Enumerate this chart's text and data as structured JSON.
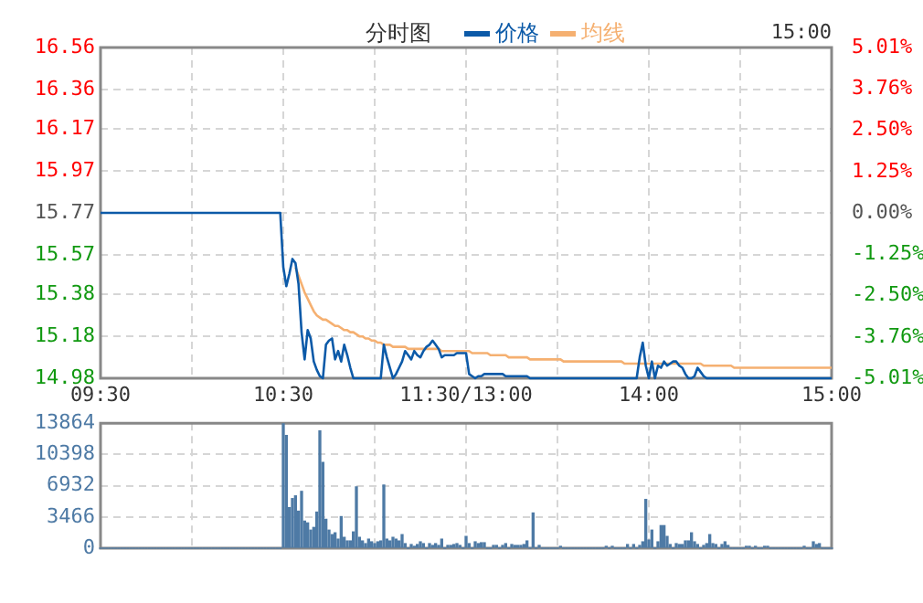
{
  "chart_data": [
    {
      "type": "line",
      "title": "分时图",
      "legend": "top",
      "marker": "none",
      "grid": true,
      "annotations": [
        "15:00"
      ],
      "categories": [
        "09:30",
        null,
        null,
        null,
        null,
        null,
        null,
        null,
        null,
        null,
        null,
        null,
        null,
        null,
        null,
        null,
        null,
        null,
        null,
        null,
        null,
        null,
        null,
        null,
        null,
        null,
        null,
        null,
        null,
        null,
        null,
        null,
        null,
        null,
        null,
        null,
        null,
        null,
        null,
        null,
        null,
        null,
        null,
        null,
        null,
        null,
        null,
        null,
        null,
        null,
        null,
        null,
        null,
        null,
        null,
        null,
        null,
        null,
        null,
        null,
        "10:30",
        null,
        null,
        null,
        null,
        null,
        null,
        null,
        null,
        null,
        null,
        null,
        null,
        null,
        null,
        null,
        null,
        null,
        null,
        null,
        null,
        null,
        null,
        null,
        null,
        null,
        null,
        null,
        null,
        null,
        null,
        null,
        null,
        null,
        null,
        null,
        null,
        null,
        null,
        null,
        null,
        null,
        null,
        null,
        null,
        null,
        null,
        null,
        null,
        null,
        null,
        null,
        null,
        null,
        null,
        null,
        null,
        null,
        null,
        null,
        "11:30/13:00",
        null,
        null,
        null,
        null,
        null,
        null,
        null,
        null,
        null,
        null,
        null,
        null,
        null,
        null,
        null,
        null,
        null,
        null,
        null,
        null,
        null,
        null,
        null,
        null,
        null,
        null,
        null,
        null,
        null,
        null,
        null,
        null,
        null,
        null,
        null,
        null,
        null,
        null,
        null,
        null,
        null,
        null,
        null,
        null,
        null,
        null,
        null,
        null,
        null,
        null,
        null,
        null,
        null,
        null,
        null,
        null,
        null,
        null,
        null,
        "14:00",
        null,
        null,
        null,
        null,
        null,
        null,
        null,
        null,
        null,
        null,
        null,
        null,
        null,
        null,
        null,
        null,
        null,
        null,
        null,
        null,
        null,
        null,
        null,
        null,
        null,
        null,
        null,
        null,
        null,
        null,
        null,
        null,
        null,
        null,
        null,
        null,
        null,
        null,
        null,
        null,
        null,
        null,
        null,
        null,
        null,
        null,
        null,
        null,
        null,
        null,
        null,
        null,
        null,
        null,
        null,
        null,
        null,
        null,
        null,
        "15:00"
      ],
      "ylim": [
        14.98,
        16.56
      ],
      "yticks": [
        14.98,
        15.18,
        15.38,
        15.57,
        15.77,
        15.97,
        16.17,
        16.36,
        16.56
      ],
      "y2lim": [
        -5.01,
        5.01
      ],
      "y2ticks": [
        {
          "value": -5.01,
          "label": "-5.01%"
        },
        {
          "value": -3.76,
          "label": "-3.76%"
        },
        {
          "value": -2.5,
          "label": "-2.50%"
        },
        {
          "value": -1.25,
          "label": "-1.25%"
        },
        {
          "value": 0,
          "label": "0.00%"
        },
        {
          "value": 1.25,
          "label": "1.25%"
        },
        {
          "value": 2.5,
          "label": "2.50%"
        },
        {
          "value": 3.76,
          "label": "3.76%"
        },
        {
          "value": 5.01,
          "label": "5.01%"
        }
      ],
      "series": [
        {
          "name": "价格",
          "color": "#0c5aa8",
          "values": [
            15.77,
            15.77,
            15.77,
            15.77,
            15.77,
            15.77,
            15.77,
            15.77,
            15.77,
            15.77,
            15.77,
            15.77,
            15.77,
            15.77,
            15.77,
            15.77,
            15.77,
            15.77,
            15.77,
            15.77,
            15.77,
            15.77,
            15.77,
            15.77,
            15.77,
            15.77,
            15.77,
            15.77,
            15.77,
            15.77,
            15.77,
            15.77,
            15.77,
            15.77,
            15.77,
            15.77,
            15.77,
            15.77,
            15.77,
            15.77,
            15.77,
            15.77,
            15.77,
            15.77,
            15.77,
            15.77,
            15.77,
            15.77,
            15.77,
            15.77,
            15.77,
            15.77,
            15.77,
            15.77,
            15.77,
            15.77,
            15.77,
            15.77,
            15.77,
            15.77,
            15.51,
            15.42,
            15.48,
            15.55,
            15.53,
            15.43,
            15.2,
            15.07,
            15.21,
            15.17,
            15.06,
            15.02,
            14.99,
            14.98,
            15.14,
            15.16,
            15.17,
            15.07,
            15.11,
            15.06,
            15.14,
            15.09,
            15.03,
            14.98,
            14.98,
            14.98,
            14.98,
            14.98,
            14.98,
            14.98,
            14.98,
            14.98,
            14.98,
            15.14,
            15.08,
            15.03,
            14.98,
            15.0,
            15.03,
            15.06,
            15.11,
            15.09,
            15.07,
            15.11,
            15.09,
            15.08,
            15.11,
            15.13,
            15.14,
            15.16,
            15.14,
            15.12,
            15.08,
            15.09,
            15.09,
            15.09,
            15.09,
            15.1,
            15.1,
            15.1,
            15.1,
            15.0,
            14.99,
            14.98,
            14.99,
            14.99,
            15.0,
            15.0,
            15.0,
            15.0,
            15.0,
            15.0,
            15.0,
            14.99,
            14.99,
            14.99,
            14.99,
            14.99,
            14.99,
            14.99,
            14.99,
            14.98,
            14.98,
            14.98,
            14.98,
            14.98,
            14.98,
            14.98,
            14.98,
            14.98,
            14.98,
            14.98,
            14.98,
            14.98,
            14.98,
            14.98,
            14.98,
            14.98,
            14.98,
            14.98,
            14.98,
            14.98,
            14.98,
            14.98,
            14.98,
            14.98,
            14.98,
            14.98,
            14.98,
            14.98,
            14.98,
            14.98,
            14.98,
            14.98,
            14.98,
            14.98,
            14.98,
            15.08,
            15.15,
            15.04,
            14.98,
            15.06,
            14.98,
            15.04,
            15.03,
            15.06,
            15.04,
            15.05,
            15.06,
            15.06,
            15.04,
            15.03,
            15.0,
            14.98,
            14.98,
            14.99,
            15.03,
            15.01,
            14.99,
            14.98,
            14.98,
            14.98,
            14.98,
            14.98,
            14.98,
            14.98,
            14.98,
            14.98,
            14.98,
            14.98,
            14.98,
            14.98,
            14.98,
            14.98,
            14.98,
            14.98,
            14.98,
            14.98,
            14.98,
            14.98,
            14.98,
            14.98,
            14.98,
            14.98,
            14.98,
            14.98,
            14.98,
            14.98,
            14.98,
            14.98,
            14.98,
            14.98,
            14.98,
            14.98,
            14.98,
            14.98,
            14.98,
            14.98,
            14.98,
            14.98,
            14.98
          ]
        },
        {
          "name": "均线",
          "color": "#f5b071",
          "values": [
            null,
            null,
            null,
            null,
            null,
            null,
            null,
            null,
            null,
            null,
            null,
            null,
            null,
            null,
            null,
            null,
            null,
            null,
            null,
            null,
            null,
            null,
            null,
            null,
            null,
            null,
            null,
            null,
            null,
            null,
            null,
            null,
            null,
            null,
            null,
            null,
            null,
            null,
            null,
            null,
            null,
            null,
            null,
            null,
            null,
            null,
            null,
            null,
            null,
            null,
            null,
            null,
            null,
            null,
            null,
            null,
            null,
            null,
            null,
            null,
            null,
            null,
            null,
            null,
            15.51,
            15.47,
            15.43,
            15.39,
            15.36,
            15.33,
            15.3,
            15.28,
            15.27,
            15.26,
            15.26,
            15.25,
            15.24,
            15.23,
            15.23,
            15.22,
            15.21,
            15.21,
            15.2,
            15.2,
            15.19,
            15.18,
            15.18,
            15.17,
            15.17,
            15.16,
            15.16,
            15.15,
            15.15,
            15.14,
            15.14,
            15.14,
            15.13,
            15.13,
            15.13,
            15.13,
            15.13,
            15.12,
            15.12,
            15.12,
            15.12,
            15.12,
            15.12,
            15.12,
            15.12,
            15.12,
            15.12,
            15.12,
            15.11,
            15.11,
            15.11,
            15.11,
            15.11,
            15.11,
            15.11,
            15.11,
            15.11,
            15.11,
            15.1,
            15.1,
            15.1,
            15.1,
            15.1,
            15.1,
            15.09,
            15.09,
            15.09,
            15.09,
            15.09,
            15.09,
            15.08,
            15.08,
            15.08,
            15.08,
            15.08,
            15.08,
            15.08,
            15.07,
            15.07,
            15.07,
            15.07,
            15.07,
            15.07,
            15.07,
            15.07,
            15.07,
            15.07,
            15.07,
            15.06,
            15.06,
            15.06,
            15.06,
            15.06,
            15.06,
            15.06,
            15.06,
            15.06,
            15.06,
            15.06,
            15.06,
            15.06,
            15.06,
            15.06,
            15.06,
            15.06,
            15.06,
            15.06,
            15.06,
            15.05,
            15.05,
            15.05,
            15.05,
            15.05,
            15.05,
            15.05,
            15.05,
            15.05,
            15.05,
            15.05,
            15.05,
            15.05,
            15.05,
            15.05,
            15.05,
            15.05,
            15.05,
            15.05,
            15.05,
            15.05,
            15.05,
            15.05,
            15.05,
            15.05,
            15.05,
            15.04,
            15.04,
            15.04,
            15.04,
            15.04,
            15.04,
            15.04,
            15.04,
            15.04,
            15.04,
            15.03,
            15.03,
            15.03,
            15.03,
            15.03,
            15.03,
            15.03,
            15.03,
            15.03,
            15.03,
            15.03,
            15.03,
            15.03,
            15.03,
            15.03,
            15.03,
            15.03,
            15.03,
            15.03,
            15.03,
            15.03,
            15.03,
            15.03,
            15.03,
            15.03,
            15.03,
            15.03,
            15.03,
            15.03,
            15.03,
            15.03,
            15.03,
            15.03
          ]
        }
      ]
    },
    {
      "type": "bar",
      "color": "#4e7aa5",
      "grid": true,
      "tick_labels": "y",
      "categories": [
        null,
        null,
        null,
        null,
        null,
        null,
        null,
        null,
        null,
        null,
        null,
        null,
        null,
        null,
        null,
        null,
        null,
        null,
        null,
        null,
        null,
        null,
        null,
        null,
        null,
        null,
        null,
        null,
        null,
        null,
        null,
        null,
        null,
        null,
        null,
        null,
        null,
        null,
        null,
        null,
        null,
        null,
        null,
        null,
        null,
        null,
        null,
        null,
        null,
        null,
        null,
        null,
        null,
        null,
        null,
        null,
        null,
        null,
        null,
        null,
        null,
        null,
        null,
        null,
        null,
        null,
        null,
        null,
        null,
        null,
        null,
        null,
        null,
        null,
        null,
        null,
        null,
        null,
        null,
        null,
        null,
        null,
        null,
        null,
        null,
        null,
        null,
        null,
        null,
        null,
        null,
        null,
        null,
        null,
        null,
        null,
        null,
        null,
        null,
        null,
        null,
        null,
        null,
        null,
        null,
        null,
        null,
        null,
        null,
        null,
        null,
        null,
        null,
        null,
        null,
        null,
        null,
        null,
        null,
        null,
        null,
        null,
        null,
        null,
        null,
        null,
        null,
        null,
        null,
        null,
        null,
        null,
        null,
        null,
        null,
        null,
        null,
        null,
        null,
        null,
        null,
        null,
        null,
        null,
        null,
        null,
        null,
        null,
        null,
        null,
        null,
        null,
        null,
        null,
        null,
        null,
        null,
        null,
        null,
        null,
        null,
        null,
        null,
        null,
        null,
        null,
        null,
        null,
        null,
        null,
        null,
        null,
        null,
        null,
        null,
        null,
        null,
        null,
        null,
        null,
        null,
        null,
        null,
        null,
        null,
        null,
        null,
        null,
        null,
        null,
        null,
        null,
        null,
        null,
        null,
        null,
        null,
        null,
        null,
        null,
        null,
        null,
        null,
        null,
        null,
        null,
        null,
        null,
        null,
        null,
        null,
        null,
        null,
        null,
        null,
        null,
        null,
        null,
        null,
        null,
        null,
        null,
        null,
        null,
        null,
        null,
        null,
        null,
        null,
        null,
        null,
        null,
        null,
        null,
        null,
        null,
        null,
        null,
        null,
        null,
        null
      ],
      "ylim": [
        0,
        13864
      ],
      "yticks": [
        0,
        3466,
        6932,
        10398,
        13864
      ],
      "values": [
        0,
        0,
        0,
        0,
        0,
        0,
        0,
        0,
        0,
        0,
        0,
        0,
        0,
        0,
        0,
        0,
        0,
        0,
        0,
        0,
        0,
        0,
        0,
        0,
        0,
        0,
        0,
        0,
        0,
        0,
        0,
        0,
        0,
        0,
        0,
        0,
        0,
        0,
        0,
        0,
        0,
        0,
        0,
        0,
        0,
        0,
        0,
        0,
        0,
        0,
        0,
        0,
        0,
        0,
        0,
        0,
        0,
        0,
        0,
        0,
        13800,
        12500,
        4500,
        5500,
        5800,
        4100,
        6300,
        3000,
        2800,
        2000,
        2300,
        4000,
        13000,
        9500,
        3200,
        2000,
        1500,
        1700,
        1000,
        3500,
        1200,
        800,
        800,
        1800,
        6800,
        1200,
        800,
        500,
        1000,
        700,
        500,
        700,
        800,
        7000,
        1000,
        800,
        1200,
        1000,
        800,
        1500,
        500,
        0,
        400,
        200,
        400,
        700,
        500,
        0,
        500,
        300,
        500,
        300,
        1000,
        0,
        300,
        300,
        400,
        500,
        300,
        0,
        1300,
        500,
        0,
        700,
        500,
        600,
        600,
        0,
        0,
        300,
        300,
        0,
        300,
        500,
        0,
        400,
        300,
        300,
        300,
        400,
        800,
        0,
        3900,
        0,
        300,
        0,
        0,
        0,
        0,
        0,
        0,
        200,
        0,
        0,
        0,
        0,
        0,
        0,
        0,
        0,
        0,
        0,
        0,
        0,
        0,
        0,
        200,
        0,
        200,
        0,
        0,
        0,
        0,
        400,
        0,
        400,
        0,
        300,
        700,
        5400,
        900,
        2000,
        0,
        700,
        2500,
        2500,
        1300,
        400,
        0,
        500,
        400,
        400,
        800,
        800,
        1700,
        700,
        400,
        0,
        300,
        500,
        1500,
        500,
        400,
        0,
        400,
        700,
        300,
        0,
        0,
        0,
        0,
        0,
        200,
        200,
        0,
        200,
        0,
        0,
        200,
        200,
        0,
        0,
        0,
        0,
        0,
        0,
        0,
        0,
        0,
        0,
        0,
        200,
        0,
        0,
        700,
        400,
        500,
        0,
        0,
        0,
        0
      ]
    }
  ]
}
